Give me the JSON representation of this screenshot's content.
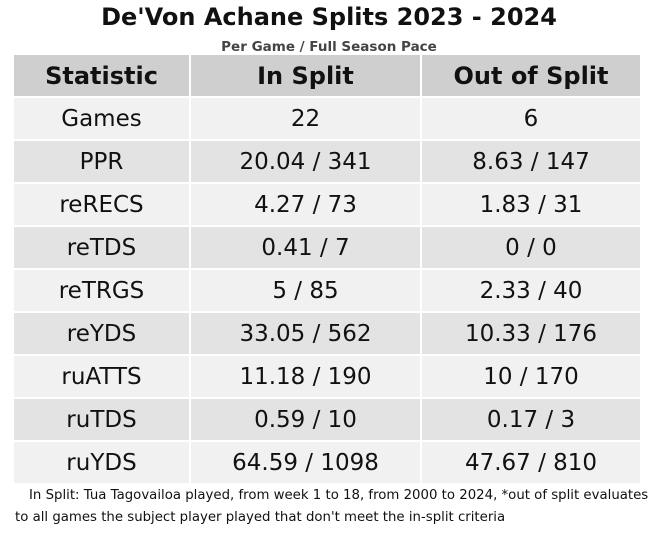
{
  "chart_data": {
    "type": "table",
    "title": "De'Von Achane Splits 2023 - 2024",
    "subtitle": "Per Game / Full Season Pace",
    "columns": [
      "Statistic",
      "In Split",
      "Out of Split"
    ],
    "rows": [
      [
        "Games",
        "22",
        "6"
      ],
      [
        "PPR",
        "20.04 / 341",
        "8.63 / 147"
      ],
      [
        "reRECS",
        "4.27 / 73",
        "1.83 / 31"
      ],
      [
        "reTDS",
        "0.41 / 7",
        "0 / 0"
      ],
      [
        "reTRGS",
        "5 / 85",
        "2.33 / 40"
      ],
      [
        "reYDS",
        "33.05 / 562",
        "10.33 / 176"
      ],
      [
        "ruATTS",
        "11.18 / 190",
        "10 / 170"
      ],
      [
        "ruTDS",
        "0.59 / 10",
        "0.17 / 3"
      ],
      [
        "ruYDS",
        "64.59 / 1098",
        "47.67 / 810"
      ]
    ],
    "footnote": "In Split: Tua Tagovailoa played, from week 1 to 18, from 2000 to 2024,  *out of split evaluates to all games the subject player played that don't meet the in-split criteria",
    "colors": {
      "header_bg": "#cfcfcf",
      "row_light": "#f1f1f1",
      "row_dark": "#e3e3e3"
    }
  }
}
